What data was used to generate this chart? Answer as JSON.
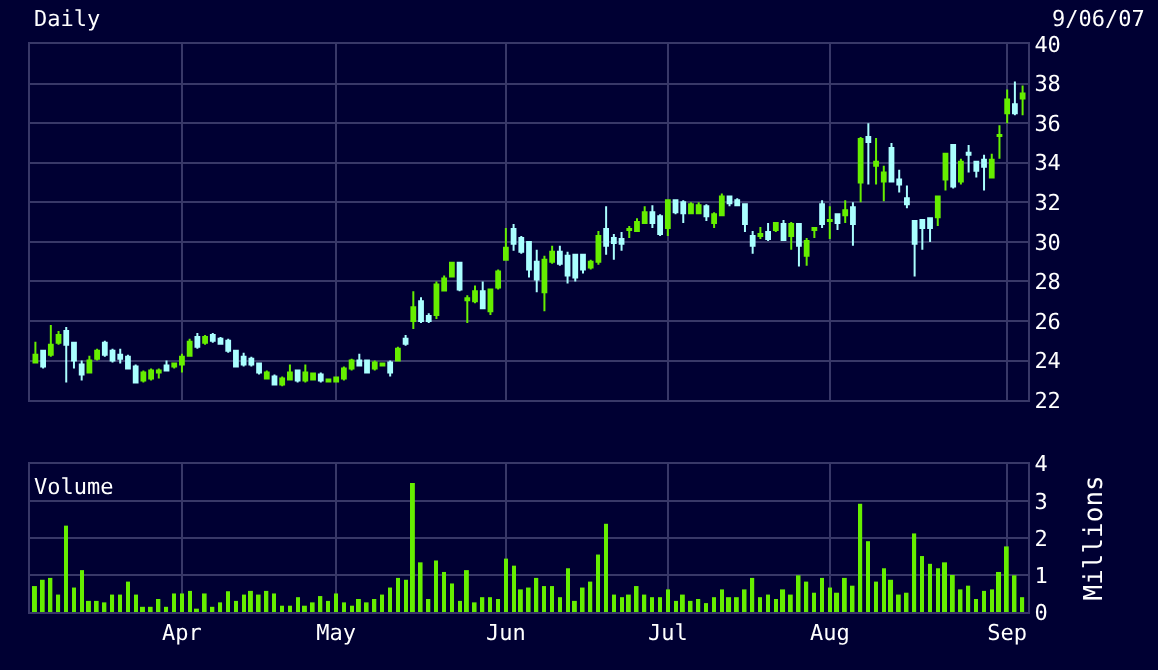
{
  "chart_data": [
    {
      "type": "candlestick",
      "title": "Daily",
      "annotations": [
        "9/06/07"
      ],
      "tick_labels": "y",
      "grid": true,
      "colors": [
        "#66ee00",
        "#aaffff",
        "#66ee00",
        "#66ee00",
        "#aaffff",
        "#aaffff",
        "#aaffff",
        "#66ee00",
        "#66ee00",
        "#aaffff",
        "#aaffff",
        "#aaffff",
        "#aaffff",
        "#aaffff",
        "#66ee00",
        "#66ee00",
        "#66ee00",
        "#aaffff",
        "#66ee00",
        "#66ee00",
        "#66ee00",
        "#aaffff",
        "#66ee00",
        "#aaffff",
        "#aaffff",
        "#aaffff",
        "#aaffff",
        "#aaffff",
        "#aaffff",
        "#aaffff",
        "#66ee00",
        "#aaffff",
        "#66ee00",
        "#66ee00",
        "#aaffff",
        "#66ee00",
        "#66ee00",
        "#aaffff",
        "#66ee00",
        "#66ee00",
        "#66ee00",
        "#66ee00",
        "#aaffff",
        "#aaffff",
        "#66ee00",
        "#66ee00",
        "#aaffff",
        "#66ee00",
        "#aaffff",
        "#66ee00",
        "#aaffff",
        "#aaffff",
        "#66ee00",
        "#66ee00",
        "#66ee00",
        "#aaffff",
        "#66ee00",
        "#66ee00",
        "#aaffff",
        "#66ee00",
        "#66ee00",
        "#66ee00",
        "#aaffff",
        "#aaffff",
        "#aaffff",
        "#aaffff",
        "#66ee00",
        "#66ee00",
        "#aaffff",
        "#aaffff",
        "#aaffff",
        "#aaffff",
        "#66ee00",
        "#66ee00",
        "#aaffff",
        "#aaffff",
        "#aaffff",
        "#66ee00",
        "#66ee00",
        "#66ee00",
        "#aaffff",
        "#aaffff",
        "#66ee00",
        "#aaffff",
        "#aaffff",
        "#66ee00",
        "#66ee00",
        "#aaffff",
        "#66ee00",
        "#66ee00",
        "#aaffff",
        "#aaffff",
        "#aaffff",
        "#aaffff",
        "#66ee00",
        "#aaffff",
        "#66ee00",
        "#aaffff",
        "#66ee00",
        "#aaffff",
        "#66ee00",
        "#66ee00",
        "#aaffff",
        "#66ee00",
        "#aaffff",
        "#66ee00",
        "#aaffff",
        "#66ee00",
        "#aaffff",
        "#66ee00",
        "#66ee00",
        "#aaffff",
        "#aaffff",
        "#aaffff",
        "#aaffff",
        "#aaffff",
        "#aaffff",
        "#66ee00",
        "#66ee00",
        "#aaffff",
        "#66ee00",
        "#aaffff",
        "#aaffff",
        "#aaffff",
        "#66ee00",
        "#66ee00",
        "#66ee00",
        "#aaffff",
        "#66ee00"
      ],
      "ylim": [
        22,
        40
      ],
      "yticks": [
        22,
        24,
        26,
        28,
        30,
        32,
        34,
        36,
        38,
        40
      ],
      "categories": [
        null,
        null,
        null,
        null,
        null,
        null,
        null,
        null,
        null,
        null,
        null,
        null,
        null,
        null,
        null,
        null,
        null,
        null,
        null,
        null,
        null,
        null,
        null,
        null,
        null,
        null,
        null,
        null,
        null,
        null,
        null,
        null,
        null,
        null,
        null,
        null,
        null,
        null,
        null,
        null,
        null,
        null,
        null,
        null,
        null,
        null,
        null,
        null,
        null,
        null,
        null,
        null,
        null,
        null,
        null,
        null,
        null,
        null,
        null,
        null,
        null,
        null,
        null,
        null,
        null,
        null,
        null,
        null,
        null,
        null,
        null,
        null,
        null,
        null,
        null,
        null,
        null,
        null,
        null,
        null,
        null,
        null,
        null,
        null,
        null,
        null,
        null,
        null,
        null,
        null,
        null,
        null,
        null,
        null,
        null,
        null,
        null,
        null,
        null,
        null,
        null,
        null,
        null,
        null,
        null,
        null,
        null,
        null,
        null,
        null,
        null,
        null,
        null,
        null,
        null,
        null,
        null,
        null,
        null,
        null,
        null,
        null,
        null,
        null,
        null,
        null,
        null,
        null,
        null
      ],
      "ohlc": [
        [
          23.9,
          24.95,
          23.9,
          24.3
        ],
        [
          24.5,
          24.5,
          23.6,
          23.7
        ],
        [
          24.3,
          25.8,
          24.2,
          24.8
        ],
        [
          24.9,
          25.5,
          24.8,
          25.3
        ],
        [
          25.5,
          25.7,
          22.9,
          24.8
        ],
        [
          24.9,
          24.9,
          23.6,
          24.0
        ],
        [
          23.8,
          24.0,
          23.0,
          23.3
        ],
        [
          23.4,
          24.25,
          23.4,
          24.0
        ],
        [
          24.1,
          24.6,
          24.0,
          24.5
        ],
        [
          24.9,
          25.0,
          24.2,
          24.3
        ],
        [
          24.5,
          24.6,
          23.9,
          24.0
        ],
        [
          24.3,
          24.6,
          23.85,
          24.1
        ],
        [
          24.2,
          24.3,
          23.6,
          23.6
        ],
        [
          23.7,
          23.8,
          22.9,
          22.9
        ],
        [
          23.0,
          23.5,
          22.9,
          23.4
        ],
        [
          23.1,
          23.6,
          23.0,
          23.5
        ],
        [
          23.4,
          23.6,
          23.1,
          23.5
        ],
        [
          23.75,
          24.0,
          23.5,
          23.5
        ],
        [
          23.7,
          23.9,
          23.6,
          23.85
        ],
        [
          23.8,
          24.35,
          23.4,
          24.2
        ],
        [
          24.25,
          25.1,
          24.2,
          24.95
        ],
        [
          25.2,
          25.4,
          24.6,
          24.7
        ],
        [
          24.9,
          25.3,
          24.8,
          25.2
        ],
        [
          25.3,
          25.4,
          24.9,
          25.0
        ],
        [
          25.1,
          25.2,
          24.8,
          24.85
        ],
        [
          25.0,
          25.1,
          24.4,
          24.5
        ],
        [
          24.5,
          24.5,
          23.7,
          23.7
        ],
        [
          24.2,
          24.4,
          23.7,
          23.8
        ],
        [
          24.1,
          24.2,
          23.7,
          23.8
        ],
        [
          23.85,
          23.9,
          23.3,
          23.4
        ],
        [
          23.1,
          23.5,
          23.1,
          23.4
        ],
        [
          23.2,
          23.3,
          22.8,
          22.8
        ],
        [
          22.8,
          23.2,
          22.7,
          23.1
        ],
        [
          23.05,
          23.8,
          23.0,
          23.4
        ],
        [
          23.5,
          23.5,
          22.9,
          23.0
        ],
        [
          23.0,
          23.8,
          22.9,
          23.4
        ],
        [
          23.05,
          23.4,
          23.0,
          23.35
        ],
        [
          23.3,
          23.4,
          22.9,
          23.0
        ],
        [
          22.95,
          23.1,
          22.9,
          23.05
        ],
        [
          22.95,
          23.2,
          22.9,
          23.15
        ],
        [
          23.1,
          23.7,
          23.0,
          23.6
        ],
        [
          23.6,
          24.1,
          23.5,
          24.0
        ],
        [
          24.0,
          24.35,
          23.7,
          23.75
        ],
        [
          24.0,
          24.0,
          23.4,
          23.4
        ],
        [
          23.6,
          24.0,
          23.5,
          23.9
        ],
        [
          23.75,
          23.9,
          23.7,
          23.85
        ],
        [
          23.9,
          24.0,
          23.2,
          23.4
        ],
        [
          24.0,
          24.7,
          24.0,
          24.6
        ],
        [
          25.1,
          25.3,
          24.75,
          24.85
        ],
        [
          26.0,
          27.5,
          25.6,
          26.7
        ],
        [
          27.0,
          27.2,
          25.9,
          26.0
        ],
        [
          26.25,
          26.4,
          25.9,
          26.0
        ],
        [
          26.3,
          28.0,
          26.1,
          27.85
        ],
        [
          27.55,
          28.3,
          27.5,
          28.15
        ],
        [
          28.25,
          29.0,
          28.2,
          28.95
        ],
        [
          28.95,
          29.0,
          27.5,
          27.6
        ],
        [
          27.05,
          27.3,
          25.9,
          27.15
        ],
        [
          27.0,
          27.8,
          26.9,
          27.5
        ],
        [
          27.5,
          28.0,
          26.6,
          26.65
        ],
        [
          26.5,
          27.6,
          26.3,
          27.6
        ],
        [
          27.7,
          28.6,
          27.6,
          28.5
        ],
        [
          29.1,
          30.7,
          29.1,
          29.7
        ],
        [
          30.65,
          30.9,
          29.55,
          29.9
        ],
        [
          30.2,
          30.3,
          29.4,
          29.5
        ],
        [
          30.0,
          30.0,
          28.2,
          28.6
        ],
        [
          29.0,
          29.6,
          27.45,
          28.1
        ],
        [
          27.45,
          29.3,
          26.5,
          29.1
        ],
        [
          29.0,
          29.8,
          28.9,
          29.5
        ],
        [
          29.5,
          29.8,
          28.8,
          28.9
        ],
        [
          29.3,
          29.5,
          27.9,
          28.3
        ],
        [
          29.35,
          29.4,
          28.0,
          28.2
        ],
        [
          29.35,
          29.4,
          28.4,
          28.6
        ],
        [
          28.7,
          29.1,
          28.6,
          29.0
        ],
        [
          29.0,
          30.55,
          28.85,
          30.3
        ],
        [
          30.65,
          31.8,
          29.35,
          29.8
        ],
        [
          30.2,
          30.4,
          29.1,
          29.95
        ],
        [
          30.15,
          30.5,
          29.55,
          29.9
        ],
        [
          30.6,
          30.8,
          30.2,
          30.65
        ],
        [
          30.55,
          31.2,
          30.5,
          31.0
        ],
        [
          30.95,
          31.8,
          30.9,
          31.5
        ],
        [
          31.5,
          31.85,
          30.7,
          30.95
        ],
        [
          31.3,
          31.4,
          30.3,
          30.4
        ],
        [
          30.7,
          32.1,
          30.3,
          32.1
        ],
        [
          32.1,
          32.1,
          31.4,
          31.5
        ],
        [
          32.0,
          32.1,
          30.95,
          31.45
        ],
        [
          31.45,
          32.0,
          31.4,
          31.9
        ],
        [
          31.45,
          32.0,
          31.4,
          31.85
        ],
        [
          31.8,
          31.9,
          31.05,
          31.3
        ],
        [
          30.95,
          31.5,
          30.7,
          31.4
        ],
        [
          31.35,
          32.45,
          31.3,
          32.3
        ],
        [
          32.3,
          32.3,
          31.8,
          31.95
        ],
        [
          32.1,
          32.2,
          31.8,
          31.85
        ],
        [
          31.9,
          31.9,
          30.5,
          30.9
        ],
        [
          30.3,
          30.55,
          29.4,
          29.8
        ],
        [
          30.3,
          30.75,
          30.15,
          30.4
        ],
        [
          30.5,
          30.95,
          30.05,
          30.15
        ],
        [
          30.6,
          31.0,
          30.5,
          30.95
        ],
        [
          30.9,
          31.1,
          30.05,
          30.1
        ],
        [
          30.3,
          31.0,
          29.6,
          30.9
        ],
        [
          30.9,
          30.9,
          28.75,
          29.8
        ],
        [
          29.3,
          30.2,
          28.8,
          30.05
        ],
        [
          30.6,
          30.75,
          30.2,
          30.7
        ],
        [
          31.9,
          32.1,
          30.7,
          30.9
        ],
        [
          31.05,
          31.8,
          30.15,
          31.1
        ],
        [
          31.4,
          31.45,
          30.6,
          30.95
        ],
        [
          31.35,
          32.1,
          30.95,
          31.6
        ],
        [
          31.75,
          32.0,
          29.8,
          30.9
        ],
        [
          33.0,
          35.3,
          32.0,
          35.2
        ],
        [
          35.3,
          36.0,
          32.9,
          35.05
        ],
        [
          33.85,
          35.25,
          32.9,
          34.05
        ],
        [
          33.05,
          33.85,
          32.05,
          33.5
        ],
        [
          34.75,
          35.0,
          33.0,
          33.05
        ],
        [
          33.15,
          33.65,
          32.5,
          32.9
        ],
        [
          32.2,
          32.85,
          31.7,
          31.9
        ],
        [
          31.05,
          31.1,
          28.25,
          29.9
        ],
        [
          31.1,
          31.15,
          29.6,
          30.7
        ],
        [
          31.2,
          31.2,
          30.0,
          30.7
        ],
        [
          31.25,
          32.35,
          30.8,
          32.3
        ],
        [
          33.15,
          34.5,
          32.6,
          34.45
        ],
        [
          34.9,
          34.95,
          32.7,
          32.8
        ],
        [
          33.05,
          34.2,
          32.9,
          34.05
        ],
        [
          34.5,
          34.9,
          33.5,
          34.4
        ],
        [
          34.05,
          34.1,
          33.25,
          33.6
        ],
        [
          34.15,
          34.4,
          32.6,
          33.8
        ],
        [
          33.25,
          34.45,
          33.2,
          34.15
        ],
        [
          35.35,
          35.9,
          34.2,
          35.4
        ],
        [
          36.5,
          37.7,
          36.0,
          37.2
        ],
        [
          36.95,
          38.1,
          36.4,
          36.5
        ],
        [
          37.25,
          37.9,
          36.4,
          37.5
        ]
      ]
    },
    {
      "type": "bar",
      "title": "Volume",
      "ylabel": "Millions",
      "grid": true,
      "color": "#66ee00",
      "ylim": [
        0,
        4
      ],
      "yticks": [
        0,
        1,
        2,
        3,
        4
      ],
      "categories": [
        null,
        null,
        null,
        null,
        null,
        null,
        null,
        null,
        null,
        null,
        null,
        null,
        null,
        null,
        null,
        null,
        null,
        null,
        null,
        "Apr",
        null,
        null,
        null,
        null,
        null,
        null,
        null,
        null,
        null,
        null,
        null,
        null,
        null,
        null,
        null,
        null,
        null,
        null,
        null,
        "May",
        null,
        null,
        null,
        null,
        null,
        null,
        null,
        null,
        null,
        null,
        null,
        null,
        null,
        null,
        null,
        null,
        null,
        null,
        null,
        null,
        null,
        "Jun",
        null,
        null,
        null,
        null,
        null,
        null,
        null,
        null,
        null,
        null,
        null,
        null,
        null,
        null,
        null,
        null,
        null,
        null,
        null,
        null,
        "Jul",
        null,
        null,
        null,
        null,
        null,
        null,
        null,
        null,
        null,
        null,
        null,
        null,
        null,
        null,
        null,
        null,
        null,
        null,
        null,
        null,
        "Aug",
        null,
        null,
        null,
        null,
        null,
        null,
        null,
        null,
        null,
        null,
        null,
        null,
        null,
        null,
        null,
        null,
        null,
        null,
        null,
        null,
        null,
        null,
        "Sep",
        null,
        null
      ],
      "values": [
        0.7,
        0.87,
        0.92,
        0.47,
        2.33,
        0.66,
        1.13,
        0.3,
        0.3,
        0.26,
        0.47,
        0.47,
        0.82,
        0.47,
        0.14,
        0.14,
        0.35,
        0.14,
        0.5,
        0.5,
        0.57,
        0.09,
        0.5,
        0.14,
        0.26,
        0.56,
        0.3,
        0.47,
        0.57,
        0.47,
        0.57,
        0.5,
        0.17,
        0.17,
        0.4,
        0.17,
        0.26,
        0.43,
        0.3,
        0.5,
        0.26,
        0.17,
        0.35,
        0.26,
        0.35,
        0.47,
        0.66,
        0.92,
        0.87,
        3.48,
        1.34,
        0.35,
        1.39,
        1.08,
        0.77,
        0.3,
        1.13,
        0.26,
        0.4,
        0.4,
        0.35,
        1.44,
        1.25,
        0.61,
        0.66,
        0.92,
        0.7,
        0.7,
        0.4,
        1.18,
        0.3,
        0.66,
        0.82,
        1.55,
        2.38,
        0.47,
        0.4,
        0.47,
        0.7,
        0.47,
        0.4,
        0.4,
        0.61,
        0.3,
        0.47,
        0.3,
        0.35,
        0.24,
        0.4,
        0.61,
        0.4,
        0.4,
        0.61,
        0.92,
        0.4,
        0.47,
        0.35,
        0.61,
        0.47,
        0.99,
        0.82,
        0.52,
        0.92,
        0.66,
        0.52,
        0.92,
        0.71,
        2.92,
        1.91,
        0.82,
        1.18,
        0.87,
        0.47,
        0.52,
        2.12,
        1.51,
        1.3,
        1.18,
        1.34,
        1.0,
        0.61,
        0.71,
        0.35,
        0.57,
        0.61,
        1.08,
        1.77,
        0.99,
        0.4
      ]
    }
  ]
}
